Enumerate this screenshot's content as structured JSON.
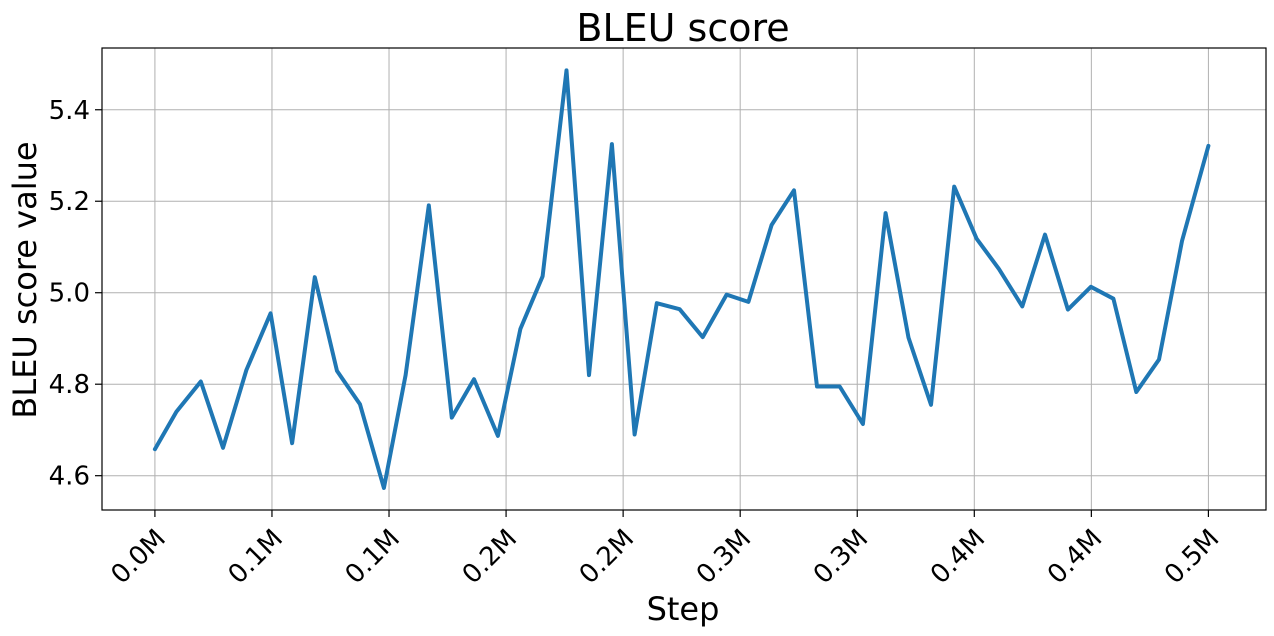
{
  "chart_data": {
    "type": "line",
    "title": "BLEU score",
    "xlabel": "Step",
    "ylabel": "BLEU score value",
    "grid": true,
    "xlim": [
      -0.0226,
      0.4746
    ],
    "ylim": [
      4.525,
      5.535
    ],
    "x_ticks": [
      {
        "value": 0.0,
        "label": "0.0M"
      },
      {
        "value": 0.05,
        "label": "0.1M"
      },
      {
        "value": 0.1,
        "label": "0.1M"
      },
      {
        "value": 0.15,
        "label": "0.2M"
      },
      {
        "value": 0.2,
        "label": "0.2M"
      },
      {
        "value": 0.25,
        "label": "0.3M"
      },
      {
        "value": 0.3,
        "label": "0.3M"
      },
      {
        "value": 0.35,
        "label": "0.4M"
      },
      {
        "value": 0.4,
        "label": "0.4M"
      },
      {
        "value": 0.45,
        "label": "0.5M"
      }
    ],
    "y_ticks": [
      {
        "value": 4.6,
        "label": "4.6"
      },
      {
        "value": 4.8,
        "label": "4.8"
      },
      {
        "value": 5.0,
        "label": "5.0"
      },
      {
        "value": 5.2,
        "label": "5.2"
      },
      {
        "value": 5.4,
        "label": "5.4"
      }
    ],
    "series": [
      {
        "color": "#1f77b4",
        "x": [
          0.0,
          0.0092,
          0.0196,
          0.0291,
          0.0391,
          0.0494,
          0.0586,
          0.0683,
          0.0778,
          0.0876,
          0.0978,
          0.1071,
          0.117,
          0.1268,
          0.1363,
          0.1465,
          0.1561,
          0.1656,
          0.1758,
          0.1854,
          0.1952,
          0.2049,
          0.2144,
          0.2241,
          0.234,
          0.2442,
          0.2535,
          0.2634,
          0.273,
          0.2828,
          0.2925,
          0.3024,
          0.3121,
          0.3219,
          0.3315,
          0.3414,
          0.351,
          0.3605,
          0.3705,
          0.3802,
          0.39,
          0.3998,
          0.4094,
          0.4192,
          0.4289,
          0.4387,
          0.45
        ],
        "y": [
          4.658,
          4.74,
          4.806,
          4.661,
          4.831,
          4.955,
          4.671,
          5.034,
          4.829,
          4.756,
          4.573,
          4.82,
          5.191,
          4.727,
          4.811,
          4.687,
          4.921,
          5.036,
          5.486,
          4.82,
          5.325,
          4.69,
          4.977,
          4.964,
          4.903,
          4.996,
          4.98,
          5.148,
          5.224,
          4.795,
          4.795,
          4.713,
          5.174,
          4.902,
          4.755,
          5.232,
          5.118,
          5.052,
          4.97,
          5.127,
          4.963,
          5.013,
          4.987,
          4.783,
          4.854,
          5.113,
          5.321
        ]
      }
    ]
  }
}
